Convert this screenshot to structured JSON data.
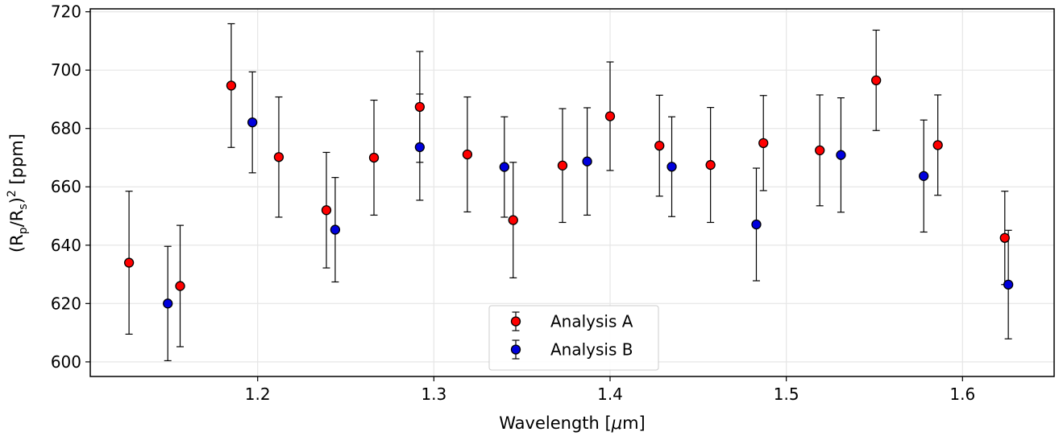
{
  "chart_data": {
    "type": "scatter",
    "title": "",
    "xlabel_prefix": "Wavelength [",
    "xlabel_mu": "μ",
    "xlabel_suffix": "m]",
    "ylabel_prefix": "(R",
    "ylabel_sub1": "p",
    "ylabel_mid": "/R",
    "ylabel_sub2": "s",
    "ylabel_close": ")",
    "ylabel_sup": "2",
    "ylabel_suffix": " [ppm]",
    "xlim": [
      1.105,
      1.652
    ],
    "ylim": [
      595,
      721
    ],
    "xticks": [
      1.2,
      1.3,
      1.4,
      1.5,
      1.6
    ],
    "xtick_labels": [
      "1.2",
      "1.3",
      "1.4",
      "1.5",
      "1.6"
    ],
    "yticks": [
      600,
      620,
      640,
      660,
      680,
      700,
      720
    ],
    "ytick_labels": [
      "600",
      "620",
      "640",
      "660",
      "680",
      "700",
      "720"
    ],
    "grid": true,
    "legend_position": "bottom-center",
    "series": [
      {
        "name": "Analysis A",
        "color": "#ff0000",
        "points": [
          {
            "x": 1.127,
            "y": 634,
            "err": 24.5
          },
          {
            "x": 1.156,
            "y": 626,
            "err": 20.8
          },
          {
            "x": 1.185,
            "y": 694.7,
            "err": 21.2
          },
          {
            "x": 1.212,
            "y": 670.2,
            "err": 20.6
          },
          {
            "x": 1.239,
            "y": 652,
            "err": 19.8
          },
          {
            "x": 1.266,
            "y": 670,
            "err": 19.7
          },
          {
            "x": 1.292,
            "y": 687.4,
            "err": 19.0
          },
          {
            "x": 1.319,
            "y": 671.1,
            "err": 19.7
          },
          {
            "x": 1.345,
            "y": 648.6,
            "err": 19.8
          },
          {
            "x": 1.373,
            "y": 667.3,
            "err": 19.5
          },
          {
            "x": 1.4,
            "y": 684.2,
            "err": 18.6
          },
          {
            "x": 1.428,
            "y": 674.1,
            "err": 17.3
          },
          {
            "x": 1.457,
            "y": 667.5,
            "err": 19.7
          },
          {
            "x": 1.487,
            "y": 675.0,
            "err": 16.3
          },
          {
            "x": 1.519,
            "y": 672.5,
            "err": 19.0
          },
          {
            "x": 1.551,
            "y": 696.5,
            "err": 17.2
          },
          {
            "x": 1.586,
            "y": 674.3,
            "err": 17.2
          },
          {
            "x": 1.624,
            "y": 642.5,
            "err": 16.0
          }
        ]
      },
      {
        "name": "Analysis B",
        "color": "#0000dd",
        "points": [
          {
            "x": 1.149,
            "y": 620,
            "err": 19.6
          },
          {
            "x": 1.197,
            "y": 682.1,
            "err": 17.3
          },
          {
            "x": 1.244,
            "y": 645.3,
            "err": 17.9
          },
          {
            "x": 1.292,
            "y": 673.6,
            "err": 18.2
          },
          {
            "x": 1.34,
            "y": 666.8,
            "err": 17.2
          },
          {
            "x": 1.387,
            "y": 668.7,
            "err": 18.4
          },
          {
            "x": 1.435,
            "y": 666.9,
            "err": 17.1
          },
          {
            "x": 1.483,
            "y": 647.1,
            "err": 19.3
          },
          {
            "x": 1.531,
            "y": 670.9,
            "err": 19.6
          },
          {
            "x": 1.578,
            "y": 663.7,
            "err": 19.2
          },
          {
            "x": 1.626,
            "y": 626.5,
            "err": 18.6
          }
        ]
      }
    ]
  }
}
